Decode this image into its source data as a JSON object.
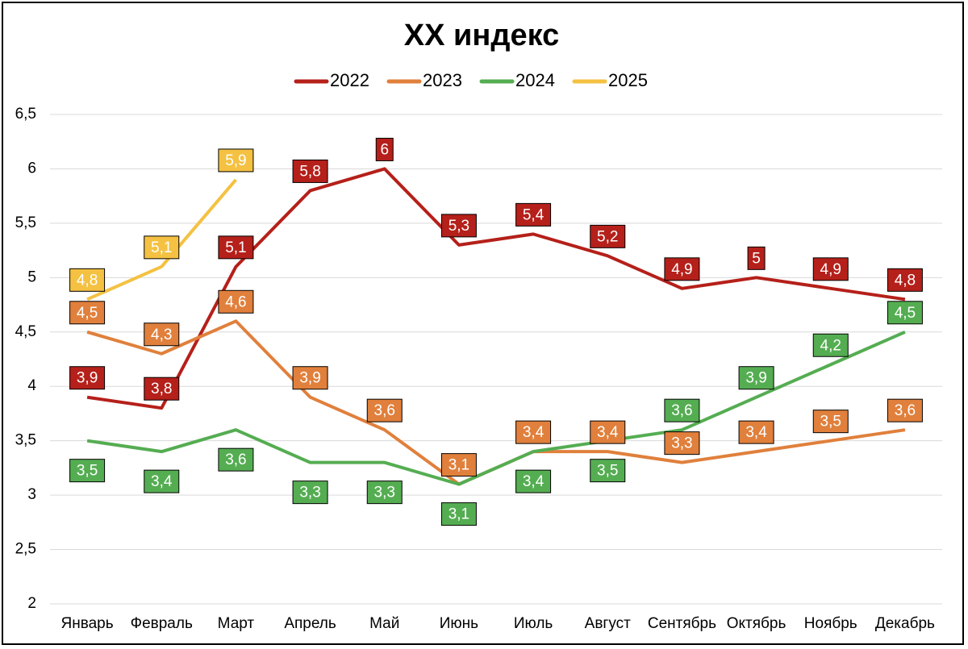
{
  "chart_data": {
    "type": "line",
    "title": "XX индекс",
    "categories": [
      "Январь",
      "Февраль",
      "Март",
      "Апрель",
      "Май",
      "Июнь",
      "Июль",
      "Август",
      "Сентябрь",
      "Октябрь",
      "Ноябрь",
      "Декабрь"
    ],
    "series": [
      {
        "name": "2022",
        "color": "#b5201a",
        "values": [
          3.9,
          3.8,
          5.1,
          5.8,
          6,
          5.3,
          5.4,
          5.2,
          4.9,
          5,
          4.9,
          4.8
        ],
        "value_labels": [
          "3,9",
          "3,8",
          "5,1",
          "5,8",
          "6",
          "5,3",
          "5,4",
          "5,2",
          "4,9",
          "5",
          "4,9",
          "4,8"
        ]
      },
      {
        "name": "2023",
        "color": "#e0803c",
        "values": [
          4.5,
          4.3,
          4.6,
          3.9,
          3.6,
          3.1,
          3.4,
          3.4,
          3.3,
          3.4,
          3.5,
          3.6
        ],
        "value_labels": [
          "4,5",
          "4,3",
          "4,6",
          "3,9",
          "3,6",
          "3,1",
          "3,4",
          "3,4",
          "3,3",
          "3,4",
          "3,5",
          "3,6"
        ]
      },
      {
        "name": "2024",
        "color": "#55ad52",
        "values": [
          3.5,
          3.4,
          3.6,
          3.3,
          3.3,
          3.1,
          3.4,
          3.5,
          3.6,
          3.9,
          4.2,
          4.5
        ],
        "value_labels": [
          "3,5",
          "3,4",
          "3,6",
          "3,3",
          "3,3",
          "3,1",
          "3,4",
          "3,5",
          "3,6",
          "3,9",
          "4,2",
          "4,5"
        ]
      },
      {
        "name": "2025",
        "color": "#f4c142",
        "values": [
          4.8,
          5.1,
          5.9,
          null,
          null,
          null,
          null,
          null,
          null,
          null,
          null,
          null
        ],
        "value_labels": [
          "4,8",
          "5,1",
          "5,9",
          null,
          null,
          null,
          null,
          null,
          null,
          null,
          null,
          null
        ]
      }
    ],
    "ylim": [
      2,
      6.5
    ],
    "yticks": [
      2,
      {
        "value": 2.5,
        "label": "2,5"
      },
      3,
      {
        "value": 3.5,
        "label": "3,5"
      },
      4,
      {
        "value": 4.5,
        "label": "4,5"
      },
      5,
      {
        "value": 5.5,
        "label": "5,5"
      },
      6,
      {
        "value": 6.5,
        "label": "6,5"
      }
    ],
    "grid": true,
    "legend": "top"
  }
}
